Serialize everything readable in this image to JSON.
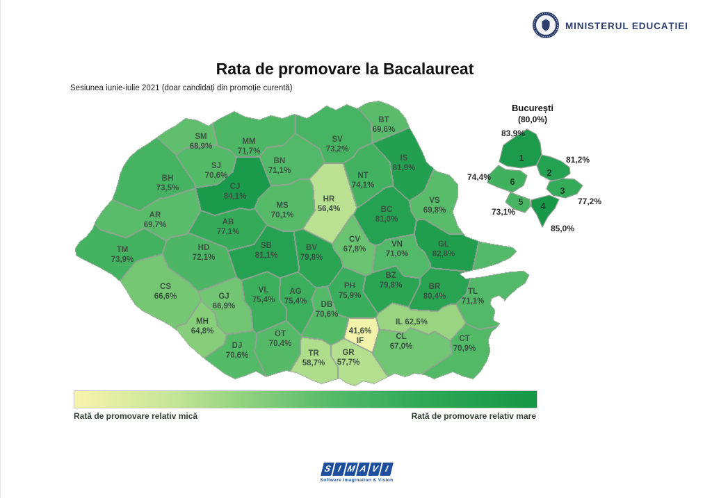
{
  "header": {
    "ministry": "MINISTERUL EDUCAȚIEI",
    "title": "Rata de promovare la Bacalaureat",
    "subtitle": "Sesiunea iunie-iulie 2021 (doar candidați din promoție curentă)"
  },
  "map": {
    "counties": [
      {
        "code": "SM",
        "value": "68,9%",
        "rate": 68.9
      },
      {
        "code": "MM",
        "value": "71,7%",
        "rate": 71.7
      },
      {
        "code": "BT",
        "value": "69,6%",
        "rate": 69.6
      },
      {
        "code": "SV",
        "value": "73,2%",
        "rate": 73.2
      },
      {
        "code": "BN",
        "value": "71,1%",
        "rate": 71.1
      },
      {
        "code": "IS",
        "value": "81,9%",
        "rate": 81.9
      },
      {
        "code": "SJ",
        "value": "70,6%",
        "rate": 70.6
      },
      {
        "code": "NT",
        "value": "74,1%",
        "rate": 74.1
      },
      {
        "code": "BH",
        "value": "73,5%",
        "rate": 73.5
      },
      {
        "code": "CJ",
        "value": "84,1%",
        "rate": 84.1
      },
      {
        "code": "HR",
        "value": "56,4%",
        "rate": 56.4
      },
      {
        "code": "VS",
        "value": "69,8%",
        "rate": 69.8
      },
      {
        "code": "MS",
        "value": "70,1%",
        "rate": 70.1
      },
      {
        "code": "BC",
        "value": "81,0%",
        "rate": 81.0
      },
      {
        "code": "AR",
        "value": "69,7%",
        "rate": 69.7
      },
      {
        "code": "AB",
        "value": "77,1%",
        "rate": 77.1
      },
      {
        "code": "GL",
        "value": "82,8%",
        "rate": 82.8
      },
      {
        "code": "TM",
        "value": "73,9%",
        "rate": 73.9
      },
      {
        "code": "HD",
        "value": "72,1%",
        "rate": 72.1
      },
      {
        "code": "SB",
        "value": "81,1%",
        "rate": 81.1
      },
      {
        "code": "BV",
        "value": "79,8%",
        "rate": 79.8
      },
      {
        "code": "CV",
        "value": "67,8%",
        "rate": 67.8
      },
      {
        "code": "VN",
        "value": "71,0%",
        "rate": 71.0
      },
      {
        "code": "BZ",
        "value": "79,8%",
        "rate": 79.8
      },
      {
        "code": "CS",
        "value": "66,6%",
        "rate": 66.6
      },
      {
        "code": "BR",
        "value": "80,4%",
        "rate": 80.4
      },
      {
        "code": "TL",
        "value": "71,1%",
        "rate": 71.1
      },
      {
        "code": "GJ",
        "value": "66,9%",
        "rate": 66.9
      },
      {
        "code": "VL",
        "value": "75,4%",
        "rate": 75.4
      },
      {
        "code": "AG",
        "value": "75,4%",
        "rate": 75.4
      },
      {
        "code": "PH",
        "value": "75,9%",
        "rate": 75.9
      },
      {
        "code": "DB",
        "value": "70,6%",
        "rate": 70.6
      },
      {
        "code": "MH",
        "value": "64,8%",
        "rate": 64.8
      },
      {
        "code": "OT",
        "value": "70,4%",
        "rate": 70.4
      },
      {
        "code": "DJ",
        "value": "70,6%",
        "rate": 70.6
      },
      {
        "code": "TR",
        "value": "58,7%",
        "rate": 58.7
      },
      {
        "code": "GR",
        "value": "57,7%",
        "rate": 57.7
      },
      {
        "code": "CT",
        "value": "70,9%",
        "rate": 70.9
      },
      {
        "code": "CL",
        "value": "67,0%",
        "rate": 67.0
      },
      {
        "code": "IF",
        "value": "41,6%",
        "rate": 41.6
      },
      {
        "code": "IL",
        "value": "62,5%",
        "rate": 62.5
      }
    ]
  },
  "bucharest": {
    "title": "București",
    "subtitle": "(80,0%)",
    "rate": 80.0,
    "sectors": [
      {
        "num": "1",
        "value": "83,9%",
        "rate": 83.9
      },
      {
        "num": "2",
        "value": "81,2%",
        "rate": 81.2
      },
      {
        "num": "3",
        "value": "77,2%",
        "rate": 77.2
      },
      {
        "num": "4",
        "value": "85,0%",
        "rate": 85.0
      },
      {
        "num": "5",
        "value": "73,1%",
        "rate": 73.1
      },
      {
        "num": "6",
        "value": "74,4%",
        "rate": 74.4
      }
    ]
  },
  "legend": {
    "low_label": "Rată de promovare relativ mică",
    "high_label": "Rată de promovare relativ mare"
  },
  "footer": {
    "brand_letters": [
      "S",
      "I",
      "M",
      "A",
      "V",
      "I"
    ],
    "tagline": "Software Imagination & Vision"
  },
  "colors": {
    "scale_stops": [
      {
        "rate": 40,
        "color": "#F8F4AC"
      },
      {
        "rate": 55,
        "color": "#C3E497"
      },
      {
        "rate": 63,
        "color": "#96D480"
      },
      {
        "rate": 70,
        "color": "#56BB69"
      },
      {
        "rate": 78,
        "color": "#2FA957"
      },
      {
        "rate": 86,
        "color": "#149647"
      }
    ],
    "border": "#97A097",
    "ministry_blue": "#2D3E6D",
    "brand_blue": "#1D4F9E"
  }
}
